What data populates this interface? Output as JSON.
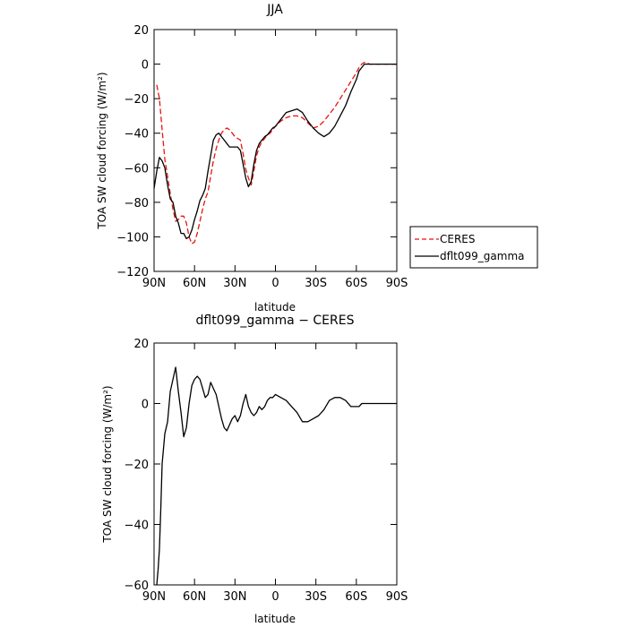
{
  "chart_data": [
    {
      "type": "line",
      "title": "JJA",
      "xlabel": "latitude",
      "ylabel": "TOA SW cloud forcing (W/m²)",
      "xlim": [
        90,
        -90
      ],
      "ylim": [
        -120,
        20
      ],
      "xticks": [
        90,
        60,
        30,
        0,
        -30,
        -60,
        -90
      ],
      "xtick_labels": [
        "90N",
        "60N",
        "30N",
        "0",
        "30S",
        "60S",
        "90S"
      ],
      "yticks": [
        20,
        0,
        -20,
        -40,
        -60,
        -80,
        -100,
        -120
      ],
      "ytick_labels": [
        "20",
        "0",
        "−20",
        "−40",
        "−60",
        "−80",
        "−100",
        "−120"
      ],
      "legend": "outside-right",
      "series": [
        {
          "name": "CERES",
          "color": "#e8140f",
          "dash": "dashed",
          "x": [
            88,
            86,
            84,
            82,
            80,
            78,
            76,
            74,
            72,
            70,
            68,
            66,
            64,
            62,
            60,
            58,
            56,
            54,
            52,
            50,
            48,
            46,
            44,
            42,
            40,
            38,
            36,
            34,
            32,
            30,
            28,
            26,
            24,
            22,
            20,
            18,
            16,
            14,
            12,
            10,
            8,
            6,
            4,
            2,
            0,
            -4,
            -8,
            -12,
            -16,
            -20,
            -24,
            -28,
            -32,
            -36,
            -40,
            -44,
            -48,
            -52,
            -56,
            -60,
            -62,
            -64,
            -66,
            -70,
            -74,
            -78,
            -82,
            -86,
            -90
          ],
          "y": [
            -12,
            -20,
            -38,
            -55,
            -65,
            -75,
            -84,
            -91,
            -90,
            -88,
            -88,
            -92,
            -100,
            -104,
            -103,
            -98,
            -91,
            -84,
            -78,
            -74,
            -65,
            -56,
            -49,
            -44,
            -40,
            -38,
            -37,
            -38,
            -40,
            -42,
            -43,
            -44,
            -52,
            -61,
            -66,
            -70,
            -62,
            -53,
            -48,
            -45,
            -43,
            -41,
            -40,
            -38,
            -36,
            -33,
            -31,
            -30,
            -30,
            -31,
            -34,
            -37,
            -36,
            -33,
            -29,
            -25,
            -20,
            -15,
            -10,
            -5,
            -2,
            0,
            1,
            0,
            0,
            0,
            0,
            0,
            0
          ]
        },
        {
          "name": "dflt099_gamma",
          "color": "#000000",
          "dash": "solid",
          "x": [
            90,
            88,
            86,
            84,
            82,
            80,
            78,
            76,
            74,
            72,
            70,
            68,
            66,
            64,
            62,
            60,
            58,
            56,
            54,
            52,
            50,
            48,
            46,
            44,
            42,
            40,
            38,
            36,
            34,
            32,
            30,
            28,
            26,
            24,
            22,
            20,
            18,
            16,
            14,
            12,
            10,
            8,
            6,
            4,
            2,
            0,
            -4,
            -8,
            -12,
            -16,
            -20,
            -24,
            -28,
            -32,
            -36,
            -40,
            -44,
            -48,
            -52,
            -56,
            -60,
            -62,
            -64,
            -66,
            -70,
            -74,
            -78,
            -82,
            -86,
            -90
          ],
          "y": [
            -72,
            -62,
            -54,
            -56,
            -60,
            -70,
            -78,
            -80,
            -88,
            -92,
            -98,
            -98,
            -101,
            -100,
            -96,
            -90,
            -85,
            -79,
            -76,
            -72,
            -62,
            -53,
            -44,
            -41,
            -40,
            -42,
            -44,
            -46,
            -48,
            -48,
            -48,
            -48,
            -50,
            -58,
            -66,
            -71,
            -68,
            -58,
            -50,
            -46,
            -44,
            -42,
            -41,
            -39,
            -37,
            -36,
            -32,
            -28,
            -27,
            -26,
            -28,
            -33,
            -37,
            -40,
            -42,
            -40,
            -36,
            -30,
            -24,
            -16,
            -9,
            -4,
            -2,
            0,
            0,
            0,
            0,
            0,
            0,
            0
          ]
        }
      ]
    },
    {
      "type": "line",
      "title": "dflt099_gamma − CERES",
      "xlabel": "latitude",
      "ylabel": "TOA SW cloud forcing (W/m²)",
      "xlim": [
        90,
        -90
      ],
      "ylim": [
        -60,
        20
      ],
      "xticks": [
        90,
        60,
        30,
        0,
        -30,
        -60,
        -90
      ],
      "xtick_labels": [
        "90N",
        "60N",
        "30N",
        "0",
        "30S",
        "60S",
        "90S"
      ],
      "yticks": [
        20,
        0,
        -20,
        -40,
        -60
      ],
      "ytick_labels": [
        "20",
        "0",
        "−20",
        "−40",
        "−60"
      ],
      "series": [
        {
          "color": "#000000",
          "dash": "solid",
          "x": [
            88,
            87,
            86,
            85,
            84,
            82,
            80,
            78,
            76,
            74,
            72,
            70,
            68,
            66,
            64,
            62,
            60,
            58,
            56,
            54,
            52,
            50,
            48,
            46,
            44,
            42,
            40,
            38,
            36,
            34,
            32,
            30,
            28,
            26,
            24,
            22,
            20,
            18,
            16,
            14,
            12,
            10,
            8,
            6,
            4,
            2,
            0,
            -4,
            -8,
            -12,
            -16,
            -20,
            -24,
            -28,
            -32,
            -36,
            -40,
            -44,
            -48,
            -52,
            -56,
            -60,
            -62,
            -64,
            -66,
            -70,
            -74,
            -78,
            -82,
            -86,
            -90
          ],
          "y": [
            -60,
            -55,
            -48,
            -35,
            -20,
            -10,
            -6,
            4,
            8,
            12,
            4,
            -3,
            -11,
            -8,
            0,
            6,
            8,
            9,
            8,
            5,
            2,
            3,
            7,
            5,
            3,
            -1,
            -5,
            -8,
            -9,
            -7,
            -5,
            -4,
            -6,
            -4,
            0,
            3,
            -1,
            -3,
            -4,
            -3,
            -1,
            -2,
            -1,
            1,
            2,
            2,
            3,
            2,
            1,
            -1,
            -3,
            -6,
            -6,
            -5,
            -4,
            -2,
            1,
            2,
            2,
            1,
            -1,
            -1,
            -1,
            0,
            0,
            0,
            0,
            0,
            0,
            0,
            0
          ]
        }
      ]
    }
  ]
}
